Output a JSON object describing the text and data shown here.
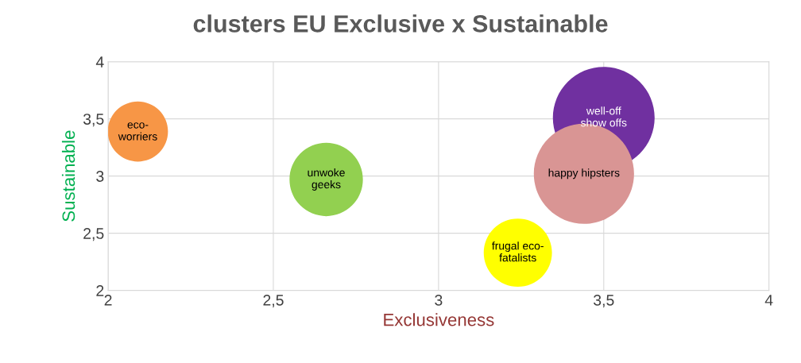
{
  "chart_data": {
    "type": "bubble",
    "title": "clusters EU Exclusive x Sustainable",
    "xlabel": "Exclusiveness",
    "ylabel": "Sustainable",
    "series": [
      {
        "name": "eco-\nworriers",
        "color": "#f79646",
        "x": [
          2.09
        ],
        "values": [
          3.39
        ],
        "sizes": [
          0.35
        ]
      },
      {
        "name": "unwoke\ngeeks",
        "color": "#92d050",
        "x": [
          2.66
        ],
        "values": [
          2.97
        ],
        "sizes": [
          0.52
        ]
      },
      {
        "name": "well-off\nshow offs",
        "color": "#7030a0",
        "x": [
          3.5
        ],
        "values": [
          3.51
        ],
        "sizes": [
          1
        ]
      },
      {
        "name": "happy hipsters",
        "color": "#d99594",
        "x": [
          3.44
        ],
        "values": [
          3.02
        ],
        "sizes": [
          0.97
        ]
      },
      {
        "name": "frugal eco-\nfatalists",
        "color": "#ffff00",
        "x": [
          3.24
        ],
        "values": [
          2.33
        ],
        "sizes": [
          0.45
        ]
      }
    ],
    "xlim": [
      2,
      4
    ],
    "xticks": [
      2,
      {
        "value": 2.5,
        "label": "2,5"
      },
      3,
      {
        "value": 3.5,
        "label": "3,5"
      },
      4
    ],
    "ylim": [
      2,
      4
    ],
    "yticks": [
      2,
      {
        "value": 2.5,
        "label": "2,5"
      },
      3,
      {
        "value": 3.5,
        "label": "3,5"
      },
      4
    ],
    "grid": true,
    "legend": false
  }
}
